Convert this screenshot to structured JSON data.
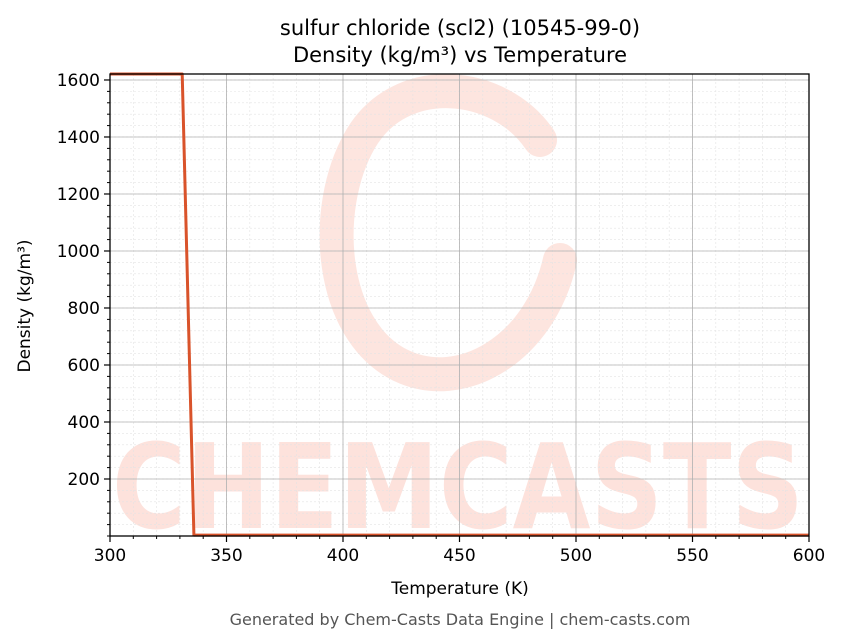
{
  "chart_data": {
    "type": "line",
    "title": "sulfur chloride (scl2) (10545-99-0)",
    "subtitle": "Density (kg/m³) vs Temperature",
    "xlabel": "Temperature (K)",
    "ylabel": "Density (kg/m³)",
    "xlim": [
      300,
      600
    ],
    "ylim": [
      0,
      1621
    ],
    "xticks": [
      300,
      350,
      400,
      450,
      500,
      550,
      600
    ],
    "yticks": [
      200,
      400,
      600,
      800,
      1000,
      1200,
      1400,
      1600
    ],
    "grid": true,
    "series": [
      {
        "x": [
          300,
          331,
          336,
          337,
          600
        ],
        "y": [
          1621,
          1621,
          3,
          3,
          3
        ]
      }
    ]
  },
  "watermark": "CHEMCASTS",
  "footer": "Generated by Chem-Casts Data Engine | chem-casts.com",
  "colors": {
    "line": "#d9532b",
    "watermark": "#fde2dc",
    "grid_major": "#b0b0b0",
    "grid_minor": "#e3e3e3"
  }
}
